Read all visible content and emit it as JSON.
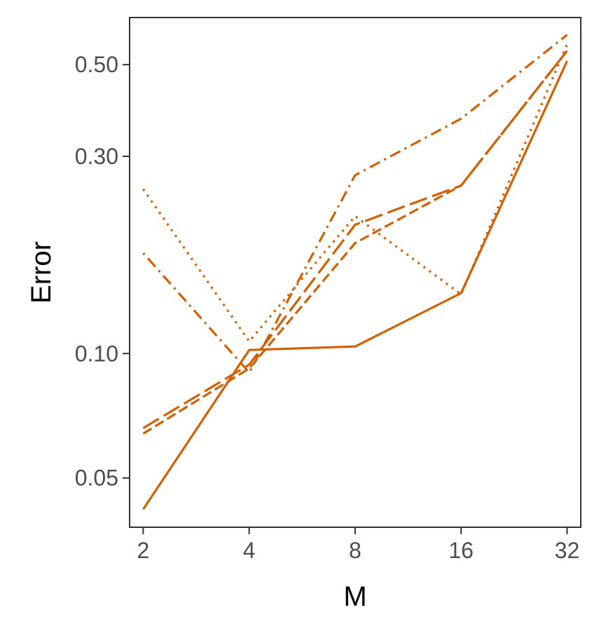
{
  "chart_data": {
    "type": "line",
    "xlabel": "M",
    "ylabel": "Error",
    "x_scale": "log2",
    "y_scale": "log10",
    "x": [
      2,
      4,
      8,
      16,
      32
    ],
    "x_ticks": [
      "2",
      "4",
      "8",
      "16",
      "32"
    ],
    "y_ticks": [
      {
        "value": 0.05,
        "label": "0.05"
      },
      {
        "value": 0.1,
        "label": "0.10"
      },
      {
        "value": 0.3,
        "label": "0.30"
      },
      {
        "value": 0.5,
        "label": "0.50"
      }
    ],
    "ylim": [
      0.038,
      0.65
    ],
    "xlim": [
      1.83,
      35.0
    ],
    "grid": false,
    "series": [
      {
        "style": "solid",
        "values": [
          0.042,
          0.102,
          0.104,
          0.14,
          0.51
        ]
      },
      {
        "style": "dashed",
        "values": [
          0.064,
          0.092,
          0.185,
          0.255,
          0.54
        ]
      },
      {
        "style": "longdash",
        "values": [
          0.066,
          0.094,
          0.205,
          0.255,
          0.54
        ]
      },
      {
        "style": "dotted",
        "values": [
          0.25,
          0.107,
          0.215,
          0.139,
          0.56
        ]
      },
      {
        "style": "dotdash",
        "values": [
          0.175,
          0.09,
          0.27,
          0.37,
          0.59
        ]
      }
    ],
    "color": "#D55E00"
  }
}
